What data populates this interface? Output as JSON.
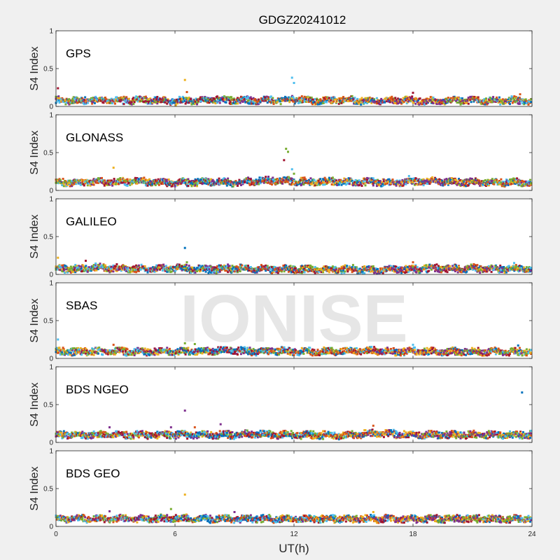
{
  "figure": {
    "title": "GDGZ20241012",
    "watermark": "IONISE",
    "background_color": "#f0f0f0",
    "axes_color": "#ffffff"
  },
  "chart_data": {
    "type": "scatter",
    "xlabel": "UT(h)",
    "xlim": [
      0,
      24
    ],
    "xticks": [
      0,
      6,
      12,
      18,
      24
    ],
    "ylabel": "S4 Index",
    "ylim": [
      0,
      1
    ],
    "yticks": [
      0,
      0.5,
      1
    ],
    "grid": false,
    "legend": "none",
    "palette": [
      "#0072BD",
      "#D95319",
      "#EDB120",
      "#7E2F8E",
      "#77AC30",
      "#4DBEEE",
      "#A2142F"
    ],
    "panels": [
      {
        "name": "GPS",
        "baseline": [
          0.08,
          0.07,
          0.08,
          0.07,
          0.08,
          0.08,
          0.07,
          0.08,
          0.09,
          0.08,
          0.08,
          0.08,
          0.09,
          0.08,
          0.08,
          0.08,
          0.07,
          0.08,
          0.08,
          0.07,
          0.08,
          0.08,
          0.07,
          0.08,
          0.07
        ],
        "outliers": [
          {
            "x": 0.1,
            "y": 0.24,
            "series": 6
          },
          {
            "x": 6.5,
            "y": 0.35,
            "series": 2
          },
          {
            "x": 6.6,
            "y": 0.19,
            "series": 1
          },
          {
            "x": 11.9,
            "y": 0.38,
            "series": 5
          },
          {
            "x": 12.0,
            "y": 0.31,
            "series": 5
          },
          {
            "x": 18.0,
            "y": 0.18,
            "series": 6
          },
          {
            "x": 23.4,
            "y": 0.16,
            "series": 1
          }
        ]
      },
      {
        "name": "GLONASS",
        "baseline": [
          0.11,
          0.1,
          0.12,
          0.11,
          0.12,
          0.11,
          0.1,
          0.11,
          0.11,
          0.1,
          0.12,
          0.13,
          0.12,
          0.11,
          0.12,
          0.11,
          0.11,
          0.1,
          0.11,
          0.12,
          0.11,
          0.11,
          0.1,
          0.11,
          0.1
        ],
        "outliers": [
          {
            "x": 2.9,
            "y": 0.3,
            "series": 2
          },
          {
            "x": 11.6,
            "y": 0.55,
            "series": 4
          },
          {
            "x": 11.7,
            "y": 0.51,
            "series": 4
          },
          {
            "x": 11.5,
            "y": 0.4,
            "series": 6
          },
          {
            "x": 11.9,
            "y": 0.28,
            "series": 5
          },
          {
            "x": 12.0,
            "y": 0.22,
            "series": 4
          },
          {
            "x": 17.8,
            "y": 0.19,
            "series": 5
          }
        ]
      },
      {
        "name": "GALILEO",
        "baseline": [
          0.08,
          0.07,
          0.09,
          0.08,
          0.07,
          0.08,
          0.08,
          0.07,
          0.07,
          0.08,
          0.07,
          0.07,
          0.07,
          0.06,
          0.06,
          0.07,
          0.06,
          0.07,
          0.07,
          0.08,
          0.08,
          0.08,
          0.07,
          0.07,
          0.08
        ],
        "outliers": [
          {
            "x": 0.1,
            "y": 0.22,
            "series": 2
          },
          {
            "x": 1.5,
            "y": 0.18,
            "series": 6
          },
          {
            "x": 6.5,
            "y": 0.35,
            "series": 0
          },
          {
            "x": 6.6,
            "y": 0.16,
            "series": 4
          },
          {
            "x": 18.0,
            "y": 0.16,
            "series": 1
          },
          {
            "x": 23.1,
            "y": 0.15,
            "series": 5
          }
        ]
      },
      {
        "name": "SBAS",
        "baseline": [
          0.09,
          0.09,
          0.09,
          0.09,
          0.09,
          0.09,
          0.09,
          0.09,
          0.1,
          0.1,
          0.09,
          0.1,
          0.09,
          0.09,
          0.09,
          0.1,
          0.1,
          0.09,
          0.09,
          0.09,
          0.09,
          0.09,
          0.09,
          0.09,
          0.09
        ],
        "outliers": [
          {
            "x": 0.1,
            "y": 0.25,
            "series": 5
          },
          {
            "x": 2.9,
            "y": 0.18,
            "series": 1
          },
          {
            "x": 6.5,
            "y": 0.2,
            "series": 4
          },
          {
            "x": 7.0,
            "y": 0.19,
            "series": 4
          },
          {
            "x": 18.0,
            "y": 0.18,
            "series": 5
          },
          {
            "x": 23.3,
            "y": 0.17,
            "series": 0
          }
        ]
      },
      {
        "name": "BDS NGEO",
        "baseline": [
          0.1,
          0.1,
          0.1,
          0.1,
          0.1,
          0.1,
          0.1,
          0.1,
          0.1,
          0.1,
          0.11,
          0.1,
          0.1,
          0.1,
          0.09,
          0.1,
          0.12,
          0.11,
          0.1,
          0.1,
          0.1,
          0.1,
          0.1,
          0.1,
          0.1
        ],
        "outliers": [
          {
            "x": 6.5,
            "y": 0.42,
            "series": 3
          },
          {
            "x": 2.7,
            "y": 0.2,
            "series": 3
          },
          {
            "x": 5.8,
            "y": 0.2,
            "series": 3
          },
          {
            "x": 7.0,
            "y": 0.2,
            "series": 1
          },
          {
            "x": 8.3,
            "y": 0.24,
            "series": 3
          },
          {
            "x": 16.0,
            "y": 0.22,
            "series": 1
          },
          {
            "x": 23.5,
            "y": 0.66,
            "series": 0
          }
        ]
      },
      {
        "name": "BDS GEO",
        "baseline": [
          0.1,
          0.1,
          0.1,
          0.1,
          0.1,
          0.1,
          0.11,
          0.1,
          0.1,
          0.1,
          0.1,
          0.1,
          0.1,
          0.1,
          0.1,
          0.1,
          0.1,
          0.1,
          0.1,
          0.1,
          0.1,
          0.1,
          0.1,
          0.1,
          0.1
        ],
        "outliers": [
          {
            "x": 6.5,
            "y": 0.42,
            "series": 2
          },
          {
            "x": 2.7,
            "y": 0.2,
            "series": 3
          },
          {
            "x": 5.8,
            "y": 0.23,
            "series": 4
          },
          {
            "x": 9.0,
            "y": 0.19,
            "series": 3
          },
          {
            "x": 16.0,
            "y": 0.19,
            "series": 2
          }
        ]
      }
    ]
  }
}
